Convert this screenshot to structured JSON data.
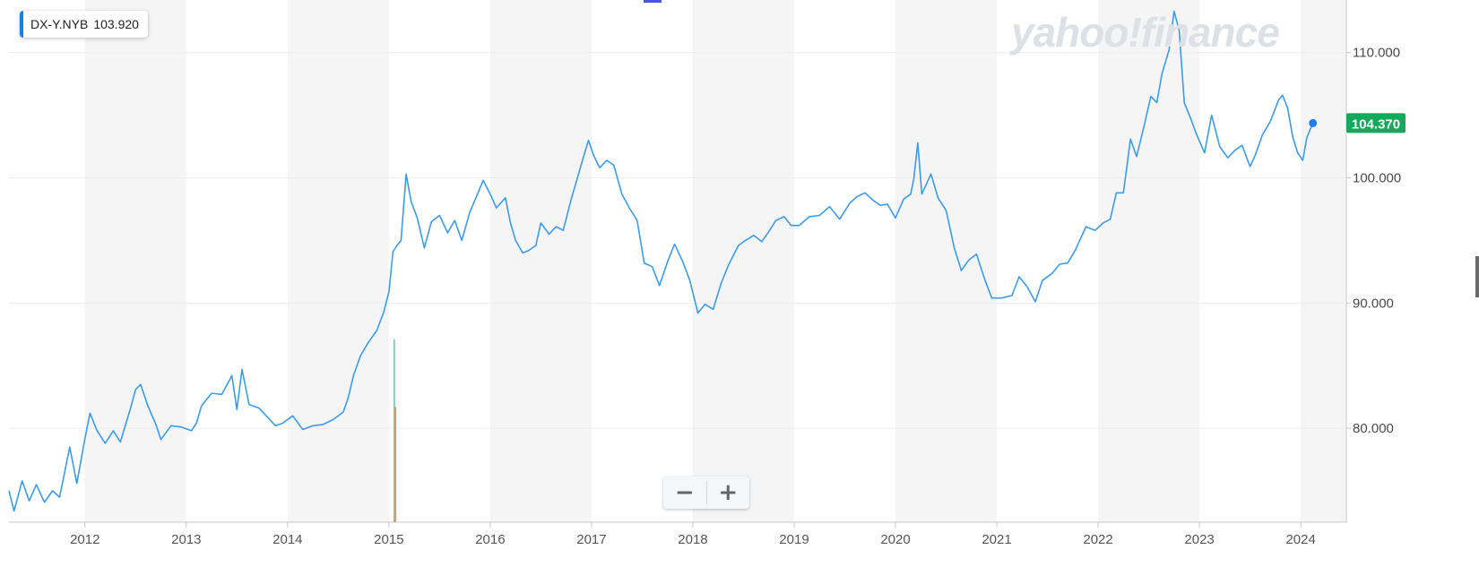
{
  "legend": {
    "symbol": "DX-Y.NYB",
    "value": "103.920",
    "color": "#1a7fe8"
  },
  "watermark": "yahoo!finance",
  "zoom": {
    "minus": "−",
    "plus": "+"
  },
  "last_price_label": "104.370",
  "colors": {
    "line": "#3a9bf0",
    "band": "#f5f5f5",
    "grid": "#ececec",
    "axis": "#c8c8c8",
    "last_price_badge": "#13a85c",
    "last_dot": "#1a7fe8",
    "volume_up": "#6fd3a8",
    "volume_down": "#f08a76"
  },
  "chart_data": {
    "type": "line",
    "title": "",
    "xlabel": "",
    "ylabel": "",
    "x_ticks": [
      "2012",
      "2013",
      "2014",
      "2015",
      "2016",
      "2017",
      "2018",
      "2019",
      "2020",
      "2021",
      "2022",
      "2023",
      "2024"
    ],
    "y_ticks": [
      "80.000",
      "90.000",
      "100.000",
      "110.000"
    ],
    "xlim": [
      2011.25,
      2024.45
    ],
    "ylim": [
      72.5,
      114.2
    ],
    "grid": true,
    "alternating_year_bands": true,
    "series": [
      {
        "values": [
          [
            2011.25,
            75
          ],
          [
            2011.3,
            73.4
          ],
          [
            2011.38,
            75.8
          ],
          [
            2011.45,
            74.2
          ],
          [
            2011.52,
            75.5
          ],
          [
            2011.6,
            74.1
          ],
          [
            2011.68,
            75
          ],
          [
            2011.75,
            74.5
          ],
          [
            2011.85,
            78.5
          ],
          [
            2011.92,
            75.6
          ],
          [
            2012.0,
            79.2
          ],
          [
            2012.05,
            81.2
          ],
          [
            2012.12,
            79.8
          ],
          [
            2012.2,
            78.8
          ],
          [
            2012.28,
            79.8
          ],
          [
            2012.35,
            78.9
          ],
          [
            2012.45,
            81.6
          ],
          [
            2012.5,
            83.1
          ],
          [
            2012.55,
            83.5
          ],
          [
            2012.62,
            81.8
          ],
          [
            2012.7,
            80.3
          ],
          [
            2012.75,
            79.1
          ],
          [
            2012.85,
            80.2
          ],
          [
            2012.95,
            80.1
          ],
          [
            2013.05,
            79.8
          ],
          [
            2013.1,
            80.4
          ],
          [
            2013.15,
            81.8
          ],
          [
            2013.25,
            82.8
          ],
          [
            2013.35,
            82.7
          ],
          [
            2013.45,
            84.2
          ],
          [
            2013.5,
            81.5
          ],
          [
            2013.55,
            84.7
          ],
          [
            2013.62,
            81.9
          ],
          [
            2013.72,
            81.6
          ],
          [
            2013.8,
            80.9
          ],
          [
            2013.88,
            80.2
          ],
          [
            2013.95,
            80.4
          ],
          [
            2014.05,
            81.0
          ],
          [
            2014.15,
            79.9
          ],
          [
            2014.25,
            80.2
          ],
          [
            2014.35,
            80.3
          ],
          [
            2014.45,
            80.7
          ],
          [
            2014.55,
            81.3
          ],
          [
            2014.6,
            82.5
          ],
          [
            2014.65,
            84.2
          ],
          [
            2014.72,
            85.8
          ],
          [
            2014.8,
            86.9
          ],
          [
            2014.88,
            87.8
          ],
          [
            2014.95,
            89.3
          ],
          [
            2015.0,
            90.9
          ],
          [
            2015.04,
            94.1
          ],
          [
            2015.08,
            94.6
          ],
          [
            2015.12,
            95.0
          ],
          [
            2015.17,
            100.3
          ],
          [
            2015.22,
            98.1
          ],
          [
            2015.28,
            96.8
          ],
          [
            2015.35,
            94.4
          ],
          [
            2015.42,
            96.5
          ],
          [
            2015.5,
            97.0
          ],
          [
            2015.58,
            95.6
          ],
          [
            2015.65,
            96.6
          ],
          [
            2015.72,
            95.0
          ],
          [
            2015.8,
            97.3
          ],
          [
            2015.88,
            98.8
          ],
          [
            2015.93,
            99.8
          ],
          [
            2016.0,
            98.7
          ],
          [
            2016.06,
            97.6
          ],
          [
            2016.15,
            98.4
          ],
          [
            2016.2,
            96.4
          ],
          [
            2016.25,
            95.0
          ],
          [
            2016.32,
            94.0
          ],
          [
            2016.38,
            94.2
          ],
          [
            2016.45,
            94.6
          ],
          [
            2016.5,
            96.4
          ],
          [
            2016.58,
            95.5
          ],
          [
            2016.65,
            96.1
          ],
          [
            2016.72,
            95.8
          ],
          [
            2016.8,
            98.3
          ],
          [
            2016.85,
            99.7
          ],
          [
            2016.9,
            101.1
          ],
          [
            2016.97,
            103.0
          ],
          [
            2017.02,
            101.8
          ],
          [
            2017.08,
            100.8
          ],
          [
            2017.15,
            101.4
          ],
          [
            2017.22,
            101.0
          ],
          [
            2017.3,
            98.7
          ],
          [
            2017.38,
            97.5
          ],
          [
            2017.45,
            96.6
          ],
          [
            2017.52,
            93.2
          ],
          [
            2017.6,
            92.9
          ],
          [
            2017.67,
            91.4
          ],
          [
            2017.75,
            93.3
          ],
          [
            2017.82,
            94.7
          ],
          [
            2017.9,
            93.3
          ],
          [
            2017.97,
            91.8
          ],
          [
            2018.05,
            89.2
          ],
          [
            2018.12,
            89.9
          ],
          [
            2018.2,
            89.5
          ],
          [
            2018.28,
            91.6
          ],
          [
            2018.35,
            93.0
          ],
          [
            2018.45,
            94.6
          ],
          [
            2018.52,
            95.0
          ],
          [
            2018.6,
            95.4
          ],
          [
            2018.68,
            94.9
          ],
          [
            2018.75,
            95.7
          ],
          [
            2018.82,
            96.6
          ],
          [
            2018.9,
            96.9
          ],
          [
            2018.97,
            96.2
          ],
          [
            2019.05,
            96.2
          ],
          [
            2019.15,
            96.9
          ],
          [
            2019.25,
            97.0
          ],
          [
            2019.35,
            97.7
          ],
          [
            2019.45,
            96.7
          ],
          [
            2019.55,
            98.0
          ],
          [
            2019.62,
            98.5
          ],
          [
            2019.7,
            98.8
          ],
          [
            2019.78,
            98.2
          ],
          [
            2019.85,
            97.8
          ],
          [
            2019.92,
            97.9
          ],
          [
            2020.0,
            96.8
          ],
          [
            2020.08,
            98.3
          ],
          [
            2020.15,
            98.7
          ],
          [
            2020.18,
            99.9
          ],
          [
            2020.22,
            102.8
          ],
          [
            2020.26,
            98.7
          ],
          [
            2020.35,
            100.3
          ],
          [
            2020.42,
            98.4
          ],
          [
            2020.5,
            97.4
          ],
          [
            2020.58,
            94.4
          ],
          [
            2020.65,
            92.6
          ],
          [
            2020.72,
            93.4
          ],
          [
            2020.8,
            93.9
          ],
          [
            2020.88,
            91.9
          ],
          [
            2020.95,
            90.4
          ],
          [
            2021.05,
            90.4
          ],
          [
            2021.15,
            90.6
          ],
          [
            2021.22,
            92.1
          ],
          [
            2021.3,
            91.3
          ],
          [
            2021.38,
            90.1
          ],
          [
            2021.45,
            91.8
          ],
          [
            2021.55,
            92.4
          ],
          [
            2021.62,
            93.1
          ],
          [
            2021.7,
            93.2
          ],
          [
            2021.78,
            94.3
          ],
          [
            2021.88,
            96.1
          ],
          [
            2021.97,
            95.8
          ],
          [
            2022.05,
            96.4
          ],
          [
            2022.12,
            96.7
          ],
          [
            2022.18,
            98.8
          ],
          [
            2022.25,
            98.8
          ],
          [
            2022.32,
            103.1
          ],
          [
            2022.38,
            101.7
          ],
          [
            2022.45,
            104.0
          ],
          [
            2022.52,
            106.5
          ],
          [
            2022.58,
            106.0
          ],
          [
            2022.63,
            108.3
          ],
          [
            2022.7,
            110.2
          ],
          [
            2022.75,
            113.3
          ],
          [
            2022.8,
            111.8
          ],
          [
            2022.85,
            106.0
          ],
          [
            2022.92,
            104.6
          ],
          [
            2022.97,
            103.5
          ],
          [
            2023.05,
            102.0
          ],
          [
            2023.12,
            105.0
          ],
          [
            2023.2,
            102.5
          ],
          [
            2023.28,
            101.6
          ],
          [
            2023.35,
            102.2
          ],
          [
            2023.42,
            102.6
          ],
          [
            2023.5,
            100.9
          ],
          [
            2023.55,
            101.8
          ],
          [
            2023.62,
            103.4
          ],
          [
            2023.7,
            104.5
          ],
          [
            2023.78,
            106.2
          ],
          [
            2023.82,
            106.6
          ],
          [
            2023.87,
            105.6
          ],
          [
            2023.92,
            103.3
          ],
          [
            2023.97,
            102.0
          ],
          [
            2024.02,
            101.4
          ],
          [
            2024.06,
            103.2
          ],
          [
            2024.12,
            104.4
          ]
        ]
      }
    ],
    "volume_spikes": [
      {
        "x": 2015.05,
        "height": 14.6,
        "color": "up"
      },
      {
        "x": 2015.05,
        "height": 9.2,
        "color": "down"
      }
    ],
    "last_point": [
      2024.12,
      104.37
    ]
  }
}
